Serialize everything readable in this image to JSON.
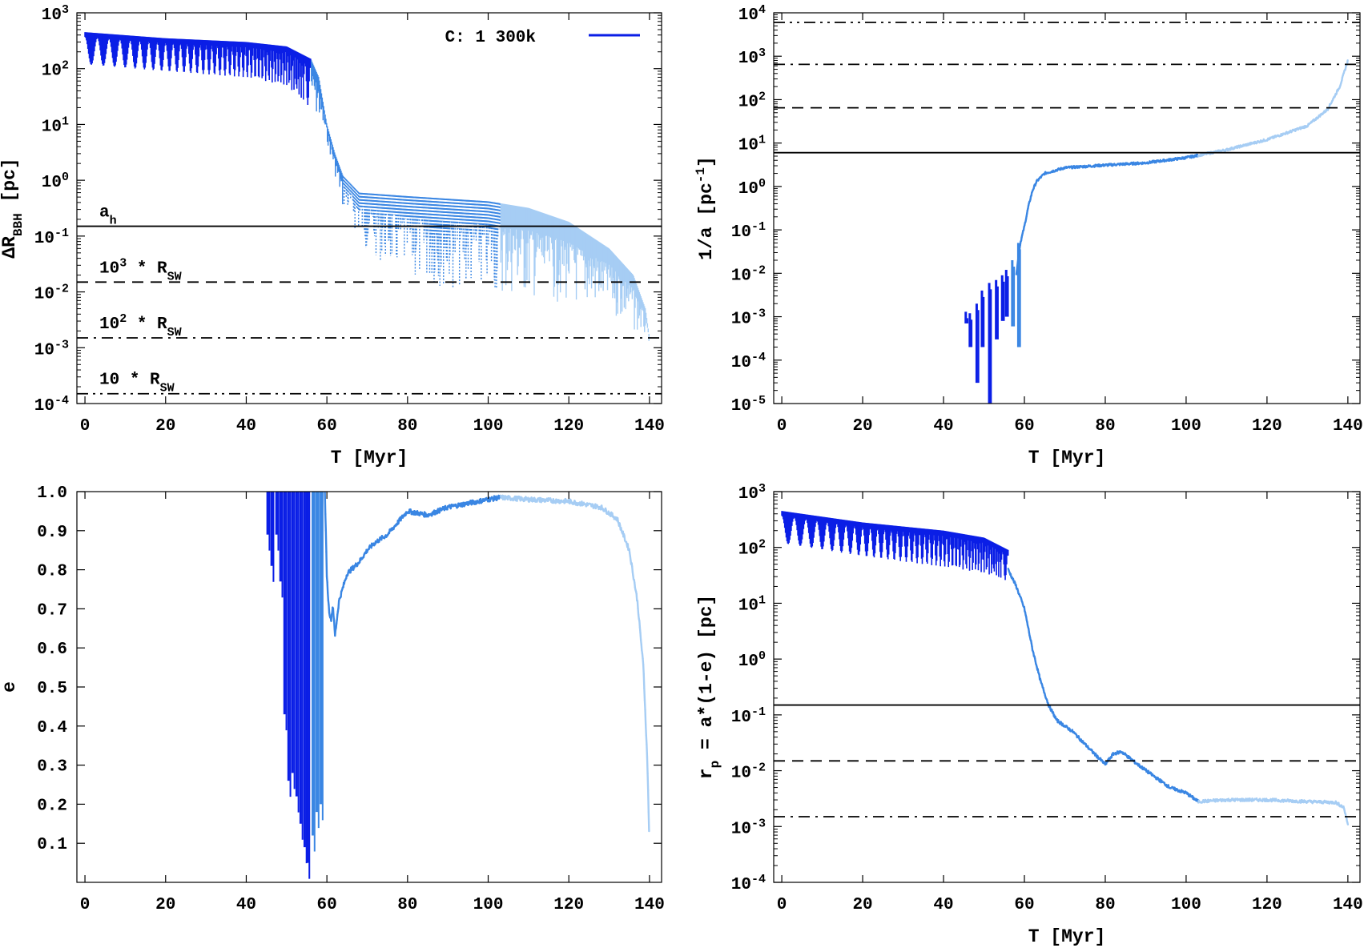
{
  "colors": {
    "phase1": "#0a1ee6",
    "phase2": "#3a86e3",
    "phase3": "#a6cdf4",
    "ref": "#000000"
  },
  "chart_data": [
    {
      "id": "p1",
      "type": "line",
      "yscale": "log",
      "xlabel": "T [Myr]",
      "ylabel": {
        "base": "ΔR",
        "sub": "BBH",
        "post": " [pc]"
      },
      "xlim": [
        -2,
        143
      ],
      "ylim_exp": [
        -4,
        3
      ],
      "xticks": [
        0,
        20,
        40,
        60,
        80,
        100,
        120,
        140
      ],
      "yticks_exp": [
        -4,
        -3,
        -2,
        -1,
        0,
        1,
        2,
        3
      ],
      "legend": {
        "label": "C: 1 300k",
        "position": "top-right"
      },
      "hlines": [
        {
          "value": 0.15,
          "style": "solid",
          "label": {
            "base": "a",
            "sub": "h"
          }
        },
        {
          "value": 0.015,
          "style": "dash",
          "label": {
            "base": "10",
            "sup": "3",
            "mid": " * R",
            "sub": "SW"
          }
        },
        {
          "value": 0.0015,
          "style": "dashdot",
          "label": {
            "base": "10",
            "sup": "2",
            "mid": " * R",
            "sub": "SW"
          }
        },
        {
          "value": 0.00015,
          "style": "dashdotdot",
          "label": {
            "base": "10",
            "mid": " * R",
            "sub": "SW"
          }
        }
      ],
      "curve": {
        "env_hi": [
          [
            0,
            450
          ],
          [
            20,
            350
          ],
          [
            40,
            300
          ],
          [
            50,
            250
          ],
          [
            56,
            150
          ],
          [
            58,
            70
          ],
          [
            60,
            10
          ],
          [
            62,
            3
          ],
          [
            64,
            1.2
          ],
          [
            68,
            0.6
          ],
          [
            80,
            0.52
          ],
          [
            100,
            0.42
          ],
          [
            110,
            0.32
          ],
          [
            120,
            0.18
          ],
          [
            130,
            0.06
          ],
          [
            136,
            0.02
          ],
          [
            139,
            0.005
          ],
          [
            140,
            0.0015
          ]
        ],
        "env_lo": [
          [
            0,
            120
          ],
          [
            20,
            90
          ],
          [
            40,
            70
          ],
          [
            50,
            50
          ],
          [
            56,
            20
          ],
          [
            60,
            5
          ],
          [
            64,
            0.3
          ],
          [
            70,
            0.05
          ],
          [
            80,
            0.015
          ],
          [
            100,
            0.009
          ],
          [
            110,
            0.008
          ],
          [
            120,
            0.006
          ],
          [
            130,
            0.004
          ],
          [
            140,
            0.0013
          ]
        ],
        "phase_breaks": [
          56,
          103
        ]
      }
    },
    {
      "id": "p2",
      "type": "line",
      "yscale": "log",
      "xlabel": "T [Myr]",
      "ylabel": {
        "base": "1/a [pc",
        "sup": "-1",
        "post": "]"
      },
      "xlim": [
        -2,
        143
      ],
      "ylim_exp": [
        -5,
        4
      ],
      "xticks": [
        0,
        20,
        40,
        60,
        80,
        100,
        120,
        140
      ],
      "yticks_exp": [
        -5,
        -4,
        -3,
        -2,
        -1,
        0,
        1,
        2,
        3,
        4
      ],
      "hlines": [
        {
          "value": 6000,
          "style": "dashdotdot"
        },
        {
          "value": 650,
          "style": "dashdot"
        },
        {
          "value": 65,
          "style": "dash"
        },
        {
          "value": 6,
          "style": "solid"
        }
      ],
      "curve": {
        "points": [
          [
            58,
            0.01
          ],
          [
            59,
            0.05
          ],
          [
            60,
            0.12
          ],
          [
            61,
            0.35
          ],
          [
            62,
            0.8
          ],
          [
            63,
            1.3
          ],
          [
            65,
            2.0
          ],
          [
            70,
            2.7
          ],
          [
            80,
            3.1
          ],
          [
            90,
            3.5
          ],
          [
            100,
            4.6
          ],
          [
            110,
            7
          ],
          [
            120,
            12
          ],
          [
            130,
            25
          ],
          [
            135,
            60
          ],
          [
            138,
            200
          ],
          [
            140,
            800
          ]
        ],
        "phase_breaks": [
          56,
          103
        ],
        "spikes": [
          [
            45.5,
            0.0007,
            0.0013
          ],
          [
            46.5,
            0.0002,
            0.0012
          ],
          [
            48.2,
            3e-05,
            0.002
          ],
          [
            49.5,
            0.0002,
            0.004
          ],
          [
            51.3,
            5e-06,
            0.006
          ],
          [
            53,
            0.0003,
            0.007
          ],
          [
            54.5,
            0.0008,
            0.009
          ],
          [
            55.5,
            0.001,
            0.012
          ],
          [
            57,
            0.0006,
            0.02
          ],
          [
            58.5,
            0.0002,
            0.05
          ]
        ]
      }
    },
    {
      "id": "p3",
      "type": "line",
      "yscale": "linear",
      "xlabel": "",
      "ylabel": {
        "base": "e"
      },
      "xlim": [
        -2,
        143
      ],
      "ylim": [
        0,
        1
      ],
      "xticks": [
        0,
        20,
        40,
        60,
        80,
        100,
        120,
        140
      ],
      "yticks": [
        0.1,
        0.2,
        0.3,
        0.4,
        0.5,
        0.6,
        0.7,
        0.8,
        0.9,
        1.0
      ],
      "curve": {
        "points": [
          [
            59.5,
            1.0
          ],
          [
            60,
            0.78
          ],
          [
            60.5,
            0.7
          ],
          [
            61,
            0.67
          ],
          [
            61.5,
            0.71
          ],
          [
            62,
            0.63
          ],
          [
            63,
            0.72
          ],
          [
            65,
            0.79
          ],
          [
            68,
            0.82
          ],
          [
            70,
            0.85
          ],
          [
            72,
            0.87
          ],
          [
            75,
            0.89
          ],
          [
            80,
            0.95
          ],
          [
            85,
            0.94
          ],
          [
            90,
            0.96
          ],
          [
            95,
            0.97
          ],
          [
            100,
            0.98
          ],
          [
            103,
            0.985
          ],
          [
            110,
            0.98
          ],
          [
            120,
            0.975
          ],
          [
            128,
            0.96
          ],
          [
            132,
            0.93
          ],
          [
            135,
            0.85
          ],
          [
            137,
            0.72
          ],
          [
            138.5,
            0.55
          ],
          [
            139.5,
            0.3
          ],
          [
            140,
            0.09
          ]
        ],
        "phase_breaks": [
          56,
          103
        ],
        "spikes": [
          [
            45.3,
            0.89
          ],
          [
            46.3,
            0.81
          ],
          [
            47.5,
            0.89
          ],
          [
            48.5,
            0.77
          ],
          [
            49.5,
            0.43
          ],
          [
            50.5,
            0.26
          ],
          [
            51.5,
            0.28
          ],
          [
            52.5,
            0.22
          ],
          [
            53.5,
            0.15
          ],
          [
            54.5,
            0.09
          ],
          [
            55.2,
            0.05
          ],
          [
            56.5,
            0.12
          ],
          [
            57.5,
            0.18
          ],
          [
            58.5,
            0.2
          ]
        ]
      }
    },
    {
      "id": "p4",
      "type": "line",
      "yscale": "log",
      "xlabel": "T [Myr]",
      "ylabel": {
        "base": "r",
        "sub": "p",
        "post": " = a*(1-e) [pc]"
      },
      "xlim": [
        -2,
        143
      ],
      "ylim_exp": [
        -4,
        3
      ],
      "xticks": [
        0,
        20,
        40,
        60,
        80,
        100,
        120,
        140
      ],
      "yticks_exp": [
        -4,
        -3,
        -2,
        -1,
        0,
        1,
        2,
        3
      ],
      "hlines": [
        {
          "value": 0.15,
          "style": "solid"
        },
        {
          "value": 0.015,
          "style": "dash"
        },
        {
          "value": 0.0015,
          "style": "dashdot"
        }
      ],
      "curve": {
        "env_hi": [
          [
            0,
            450
          ],
          [
            20,
            280
          ],
          [
            40,
            200
          ],
          [
            50,
            150
          ],
          [
            56,
            90
          ]
        ],
        "env_lo": [
          [
            0,
            120
          ],
          [
            20,
            70
          ],
          [
            40,
            45
          ],
          [
            50,
            35
          ],
          [
            56,
            25
          ]
        ],
        "points": [
          [
            56,
            40
          ],
          [
            58,
            20
          ],
          [
            60,
            8
          ],
          [
            62,
            1.5
          ],
          [
            64,
            0.4
          ],
          [
            66,
            0.15
          ],
          [
            68,
            0.08
          ],
          [
            72,
            0.05
          ],
          [
            76,
            0.025
          ],
          [
            80,
            0.013
          ],
          [
            82,
            0.02
          ],
          [
            84,
            0.022
          ],
          [
            88,
            0.013
          ],
          [
            92,
            0.008
          ],
          [
            96,
            0.005
          ],
          [
            100,
            0.004
          ],
          [
            103,
            0.0028
          ],
          [
            110,
            0.003
          ],
          [
            120,
            0.003
          ],
          [
            130,
            0.0028
          ],
          [
            137,
            0.0027
          ],
          [
            139,
            0.0022
          ],
          [
            140,
            0.0011
          ]
        ],
        "phase_breaks": [
          56,
          103
        ]
      }
    }
  ]
}
